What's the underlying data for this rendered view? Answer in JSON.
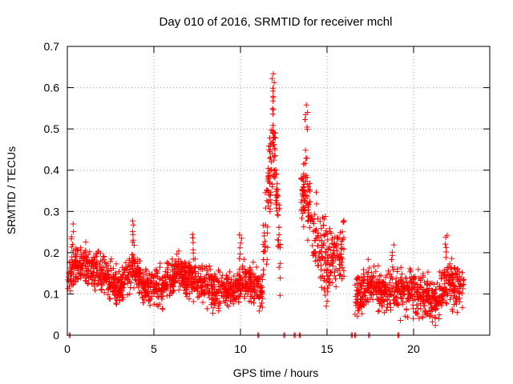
{
  "chart_data": {
    "type": "scatter",
    "title": "Day 010 of 2016, SRMTID for receiver mchl",
    "xlabel": "GPS time / hours",
    "ylabel": "SRMTID / TECUs",
    "xlim": [
      0,
      24.4
    ],
    "ylim": [
      0,
      0.7
    ],
    "xticks": [
      0,
      5,
      10,
      15,
      20
    ],
    "yticks": [
      0,
      0.1,
      0.2,
      0.3,
      0.4,
      0.5,
      0.6,
      0.7
    ],
    "grid": true,
    "marker": "+",
    "marker_color": "#ff0000",
    "series": [
      {
        "name": "SRMTID",
        "segments": [
          {
            "start": 0.0,
            "end": 11.3,
            "baseline": [
              [
                0,
                0.14
              ],
              [
                0.5,
                0.18
              ],
              [
                1,
                0.17
              ],
              [
                2,
                0.15
              ],
              [
                3,
                0.11
              ],
              [
                3.8,
                0.17
              ],
              [
                4.5,
                0.11
              ],
              [
                5.5,
                0.12
              ],
              [
                6.5,
                0.15
              ],
              [
                7.5,
                0.13
              ],
              [
                8.5,
                0.11
              ],
              [
                9.5,
                0.11
              ],
              [
                10.3,
                0.13
              ],
              [
                11.2,
                0.11
              ]
            ],
            "spread": 0.06,
            "count": 1200
          },
          {
            "start": 11.3,
            "end": 12.3,
            "baseline": [
              [
                11.3,
                0.18
              ],
              [
                11.7,
                0.38
              ],
              [
                11.9,
                0.52
              ],
              [
                12.1,
                0.32
              ],
              [
                12.3,
                0.2
              ]
            ],
            "spread": 0.14,
            "count": 130
          },
          {
            "start": 13.5,
            "end": 16.0,
            "baseline": [
              [
                13.5,
                0.34
              ],
              [
                13.8,
                0.38
              ],
              [
                14.2,
                0.26
              ],
              [
                14.6,
                0.2
              ],
              [
                15.2,
                0.17
              ],
              [
                16.0,
                0.2
              ]
            ],
            "spread": 0.12,
            "count": 260
          },
          {
            "start": 16.6,
            "end": 22.9,
            "baseline": [
              [
                16.6,
                0.09
              ],
              [
                17.5,
                0.12
              ],
              [
                18.5,
                0.1
              ],
              [
                19.5,
                0.11
              ],
              [
                20.5,
                0.1
              ],
              [
                21.2,
                0.08
              ],
              [
                22,
                0.13
              ],
              [
                22.9,
                0.11
              ]
            ],
            "spread": 0.07,
            "count": 650
          }
        ],
        "peaks": [
          {
            "x": 11.9,
            "y": 0.64
          },
          {
            "x": 13.8,
            "y": 0.56
          },
          {
            "x": 3.8,
            "y": 0.28
          },
          {
            "x": 7.3,
            "y": 0.25
          },
          {
            "x": 10.0,
            "y": 0.25
          },
          {
            "x": 0.3,
            "y": 0.27
          },
          {
            "x": 18.8,
            "y": 0.22
          },
          {
            "x": 21.9,
            "y": 0.25
          }
        ],
        "zero_points": [
          0.1,
          11.0,
          12.5,
          13.1,
          13.4,
          16.4,
          16.6,
          17.4,
          19.1
        ]
      }
    ]
  }
}
